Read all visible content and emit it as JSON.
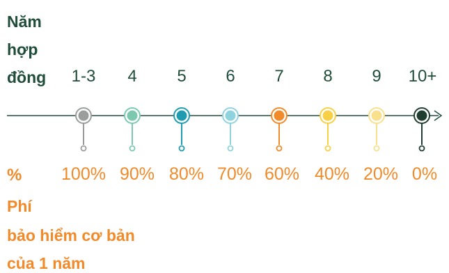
{
  "header_label": [
    "Năm",
    "hợp",
    "đồng"
  ],
  "footer_label": [
    "Phí",
    "bảo hiểm cơ bản",
    "của 1 năm"
  ],
  "percent_symbol": "%",
  "steps": [
    {
      "year": "1-3",
      "percent": "100%",
      "color": "#9a9d9b"
    },
    {
      "year": "4",
      "percent": "90%",
      "color": "#7cc9b0"
    },
    {
      "year": "5",
      "percent": "80%",
      "color": "#1f9cb0"
    },
    {
      "year": "6",
      "percent": "70%",
      "color": "#8fd3df"
    },
    {
      "year": "7",
      "percent": "60%",
      "color": "#f08a2a"
    },
    {
      "year": "8",
      "percent": "40%",
      "color": "#f7d046"
    },
    {
      "year": "9",
      "percent": "20%",
      "color": "#f9e08c"
    },
    {
      "year": "10+",
      "percent": "0%",
      "color": "#1f3d30"
    }
  ],
  "colors": {
    "line": "#1f4d3a",
    "heading": "#1f4d3a",
    "accent": "#f08a2a"
  }
}
